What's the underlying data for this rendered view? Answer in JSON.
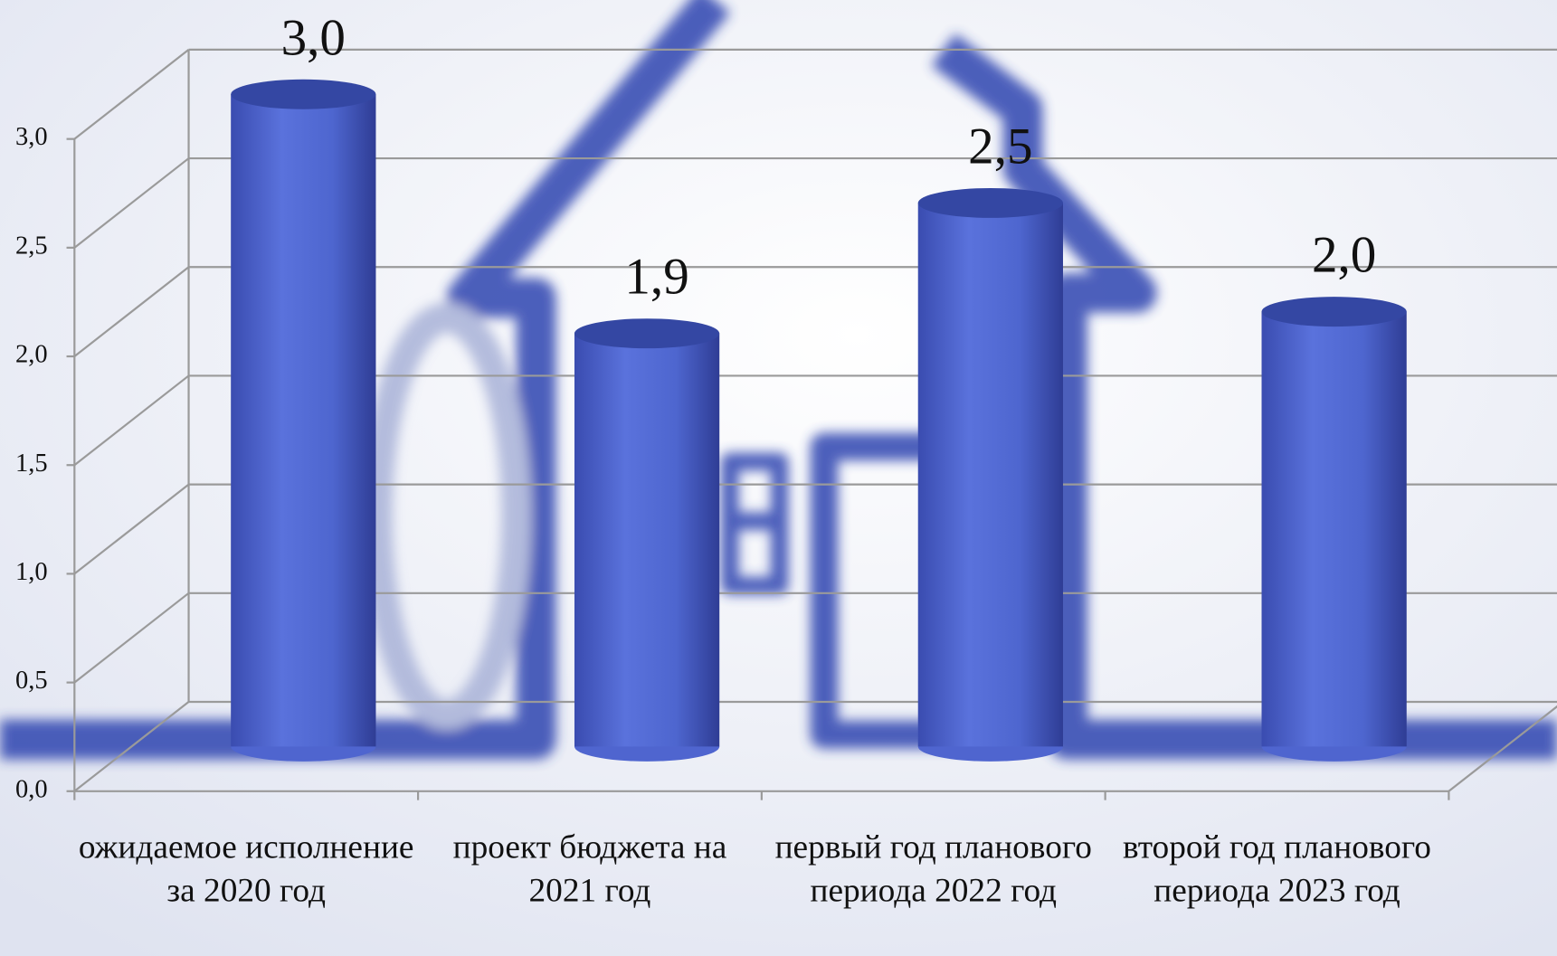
{
  "chart_data": {
    "type": "bar",
    "categories": [
      "ожидаемое исполнение за 2020 год",
      "проект бюджета на 2021 год",
      "первый год планового периода 2022 год",
      "второй год планового периода 2023 год"
    ],
    "values": [
      3.0,
      1.9,
      2.5,
      2.0
    ],
    "value_labels": [
      "3,0",
      "1,9",
      "2,5",
      "2,0"
    ],
    "color": "#4f65cf",
    "ylim": [
      0,
      3
    ],
    "yticks": [
      {
        "value": 0,
        "label": "0,0"
      },
      {
        "value": 0.5,
        "label": "0,5"
      },
      {
        "value": 1,
        "label": "1,0"
      },
      {
        "value": 1.5,
        "label": "1,5"
      },
      {
        "value": 2,
        "label": "2,0"
      },
      {
        "value": 2.5,
        "label": "2,5"
      },
      {
        "value": 3,
        "label": "3,0"
      }
    ],
    "grid": true
  }
}
